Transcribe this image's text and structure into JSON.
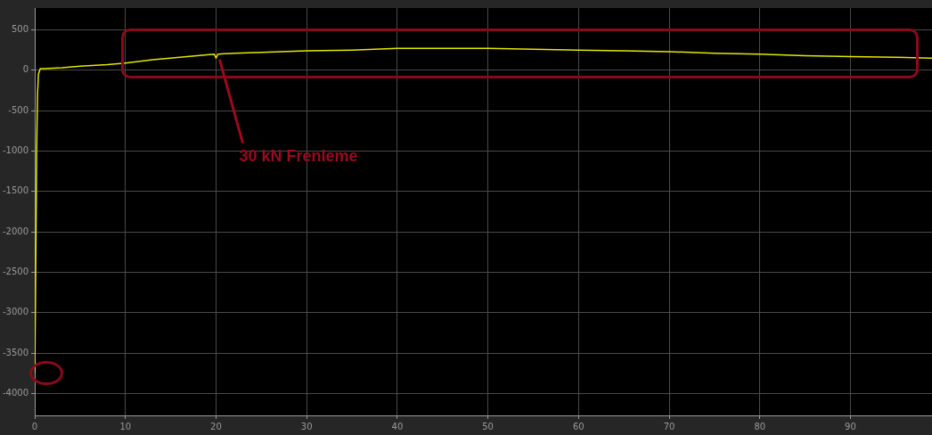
{
  "chart_data": {
    "type": "line",
    "x": [
      0,
      0.1,
      0.2,
      0.3,
      0.4,
      0.6,
      1,
      3,
      5,
      8,
      10,
      13,
      16,
      19.8,
      20,
      20.2,
      22,
      25,
      30,
      35,
      40,
      45,
      50,
      55,
      60,
      65,
      70,
      75,
      80,
      85,
      90,
      95,
      99
    ],
    "series": [
      {
        "color": "#e6e600",
        "values": [
          -3750,
          -2500,
          -1000,
          -300,
          -50,
          20,
          20,
          30,
          50,
          70,
          90,
          130,
          160,
          200,
          150,
          200,
          210,
          220,
          240,
          250,
          270,
          270,
          270,
          260,
          250,
          240,
          230,
          210,
          200,
          180,
          170,
          160,
          150
        ]
      }
    ],
    "xlim": [
      0,
      99
    ],
    "ylim": [
      -4270,
      770
    ],
    "xticks": [
      0,
      10,
      20,
      30,
      40,
      50,
      60,
      70,
      80,
      90
    ],
    "yticks": [
      500,
      0,
      -500,
      -1000,
      -1500,
      -2000,
      -2500,
      -3000,
      -3500,
      -4000
    ],
    "grid": true,
    "legend": false,
    "marker": "none",
    "line_style": "solid",
    "annotations": [
      {
        "text": "30 kN Frenleme",
        "x": 20,
        "y": 200
      }
    ]
  }
}
